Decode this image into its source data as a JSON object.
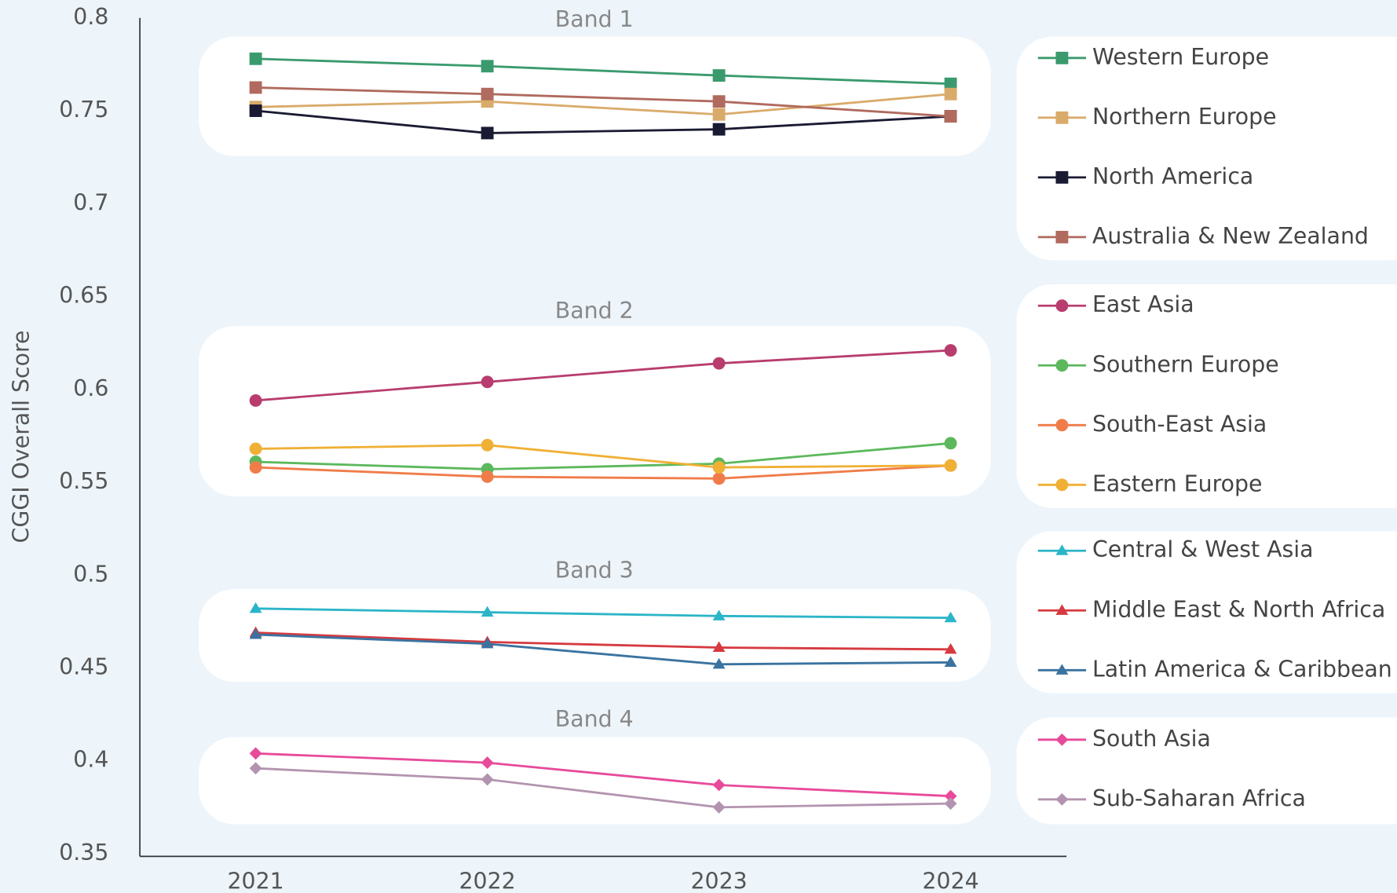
{
  "chart_data": {
    "type": "line",
    "y_label": "CGGI Overall Score",
    "categories": [
      "2021",
      "2022",
      "2023",
      "2024"
    ],
    "ylim": [
      0.35,
      0.8
    ],
    "yticks": [
      0.8,
      0.75,
      0.7,
      0.65,
      0.6,
      0.55,
      0.5,
      0.45,
      0.4,
      0.35
    ],
    "grid": false,
    "bands": [
      {
        "name": "Band 1",
        "marker": "square",
        "series": [
          {
            "name": "Western Europe",
            "color": "#3a9a6e",
            "values": [
              0.778,
              0.774,
              0.769,
              0.7645
            ]
          },
          {
            "name": "Northern Europe",
            "color": "#d9ab6a",
            "values": [
              0.752,
              0.755,
              0.748,
              0.759
            ]
          },
          {
            "name": "North America",
            "color": "#1a1a33",
            "values": [
              0.75,
              0.738,
              0.74,
              0.747
            ]
          },
          {
            "name": "Australia & New Zealand",
            "color": "#b06a5e",
            "values": [
              0.7625,
              0.759,
              0.755,
              0.747
            ]
          }
        ]
      },
      {
        "name": "Band 2",
        "marker": "circle",
        "series": [
          {
            "name": "East Asia",
            "color": "#b83d6e",
            "values": [
              0.594,
              0.604,
              0.614,
              0.621
            ]
          },
          {
            "name": "Southern Europe",
            "color": "#5cb85c",
            "values": [
              0.561,
              0.557,
              0.56,
              0.571
            ]
          },
          {
            "name": "South-East Asia",
            "color": "#f07c4a",
            "values": [
              0.558,
              0.553,
              0.552,
              0.559
            ]
          },
          {
            "name": "Eastern Europe",
            "color": "#f0b035",
            "values": [
              0.568,
              0.57,
              0.558,
              0.559
            ]
          }
        ]
      },
      {
        "name": "Band 3",
        "marker": "triangle",
        "series": [
          {
            "name": "Central & West Asia",
            "color": "#2bb5c8",
            "values": [
              0.482,
              0.48,
              0.478,
              0.477
            ]
          },
          {
            "name": "Middle East & North Africa",
            "color": "#d63a40",
            "values": [
              0.469,
              0.464,
              0.461,
              0.46
            ]
          },
          {
            "name": "Latin America & Caribbean",
            "color": "#3a73a0",
            "values": [
              0.468,
              0.463,
              0.452,
              0.453
            ]
          }
        ]
      },
      {
        "name": "Band 4",
        "marker": "diamond",
        "series": [
          {
            "name": "South Asia",
            "color": "#e84a9a",
            "values": [
              0.404,
              0.399,
              0.387,
              0.381
            ]
          },
          {
            "name": "Sub-Saharan Africa",
            "color": "#b394b0",
            "values": [
              0.396,
              0.39,
              0.375,
              0.377
            ]
          }
        ]
      }
    ]
  }
}
